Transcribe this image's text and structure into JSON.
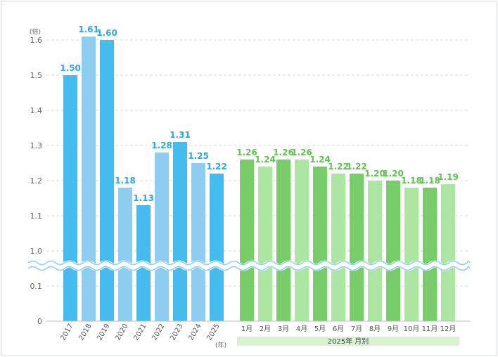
{
  "chart_data": {
    "type": "bar",
    "y_unit_label": "(倍)",
    "y_ticks": [
      "0",
      "0.1",
      "1.0",
      "1.1",
      "1.2",
      "1.3",
      "1.4",
      "1.5",
      "1.6"
    ],
    "axis_break": true,
    "annual": {
      "categories": [
        "2017",
        "2018",
        "2019",
        "2020",
        "2021",
        "2022",
        "2023",
        "2024",
        "2025"
      ],
      "values": [
        1.5,
        1.61,
        1.6,
        1.18,
        1.13,
        1.28,
        1.31,
        1.25,
        1.22
      ],
      "value_labels": [
        "1.50",
        "1.61",
        "1.60",
        "1.18",
        "1.13",
        "1.28",
        "1.31",
        "1.25",
        "1.22"
      ],
      "unit_suffix": "(年)",
      "colors": [
        "#46bcee",
        "#8ccdf0"
      ],
      "label_color": "#2aa8e0"
    },
    "monthly": {
      "group_label": "2025年 月別",
      "categories": [
        "1月",
        "2月",
        "3月",
        "4月",
        "5月",
        "6月",
        "7月",
        "8月",
        "9月",
        "10月",
        "11月",
        "12月"
      ],
      "values": [
        1.26,
        1.24,
        1.26,
        1.26,
        1.24,
        1.22,
        1.22,
        1.2,
        1.2,
        1.18,
        1.18,
        1.19
      ],
      "value_labels": [
        "1.26",
        "1.24",
        "1.26",
        "1.26",
        "1.24",
        "1.22",
        "1.22",
        "1.20",
        "1.20",
        "1.18",
        "1.18",
        "1.19"
      ],
      "colors": [
        "#78cc6a",
        "#ace6a2"
      ],
      "label_color": "#5fbf4f",
      "band_color": "#d8f2d2"
    },
    "grid_color": "#d9d9d9",
    "axis_color": "#bdbdbd",
    "wave_color": "#8fd0ea"
  }
}
